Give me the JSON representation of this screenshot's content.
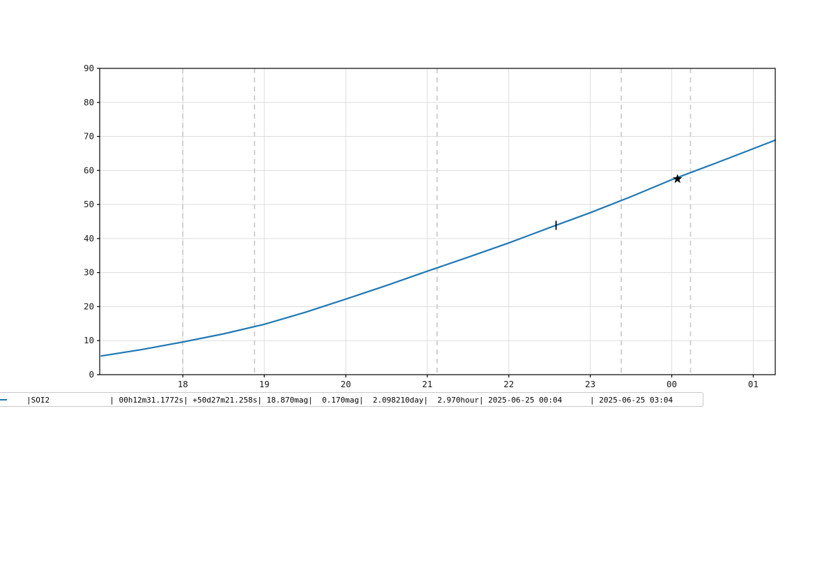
{
  "figure": {
    "background": "#ffffff"
  },
  "chart_data": {
    "type": "line",
    "title": "",
    "xlabel": "",
    "ylabel": "",
    "grid": true,
    "x_axis": {
      "unit": "hour-of-day",
      "range": [
        16.98,
        25.27
      ],
      "ticks": [
        {
          "value": 18,
          "label": "18"
        },
        {
          "value": 19,
          "label": "19"
        },
        {
          "value": 20,
          "label": "20"
        },
        {
          "value": 21,
          "label": "21"
        },
        {
          "value": 22,
          "label": "22"
        },
        {
          "value": 23,
          "label": "23"
        },
        {
          "value": 24,
          "label": "00"
        },
        {
          "value": 25,
          "label": "01"
        }
      ]
    },
    "y_axis": {
      "range": [
        0,
        90
      ],
      "ticks": [
        0,
        10,
        20,
        30,
        40,
        50,
        60,
        70,
        80,
        90
      ]
    },
    "series": [
      {
        "name": "SOI2",
        "color": "#1f77b4",
        "x": [
          17.0,
          17.5,
          18.0,
          18.5,
          19.0,
          19.5,
          20.0,
          20.5,
          21.0,
          21.5,
          22.0,
          22.5,
          23.0,
          23.5,
          24.0,
          24.5,
          25.0,
          25.27
        ],
        "y": [
          5.5,
          7.4,
          9.6,
          12.0,
          14.8,
          18.3,
          22.2,
          26.2,
          30.4,
          34.5,
          38.7,
          43.2,
          47.6,
          52.3,
          57.3,
          61.8,
          66.4,
          68.9
        ]
      }
    ],
    "dashed_vlines": [
      18.0,
      18.88,
      21.12,
      23.38,
      24.23
    ],
    "markers": [
      {
        "shape": "vtick",
        "x": 22.58,
        "y": 43.9,
        "color": "#000000"
      },
      {
        "shape": "star",
        "x": 24.07,
        "y": 57.5,
        "color": "#000000"
      }
    ],
    "legend": {
      "position": "bottom-outside-left",
      "entries": [
        {
          "label": "|SOI2             | 00h12m31.1772s| +50d27m21.258s| 18.870mag|  0.170mag|  2.098210day|  2.970hour| 2025-06-25 00:04      | 2025-06-25 03:04",
          "line_color": "#1f77b4"
        }
      ]
    },
    "colors": {
      "line": "#1f77b4",
      "grid": "#dcdcdc",
      "dashed_line": "#c9c9c9",
      "axis": "#000000",
      "tick_label": "#1a1a1a",
      "legend_border": "#c8c8c8"
    }
  }
}
